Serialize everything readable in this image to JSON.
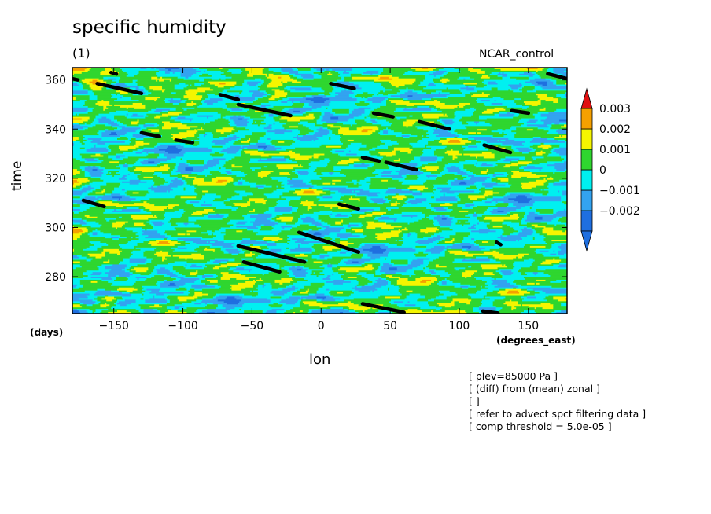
{
  "chart_data": {
    "type": "heatmap",
    "title": "specific humidity",
    "subtitle": "(1)",
    "run": "NCAR_control",
    "xlabel": "lon",
    "ylabel": "time",
    "x_unit": "(degrees_east)",
    "y_unit": "(days)",
    "xlim": [
      -180,
      178
    ],
    "ylim": [
      265,
      365
    ],
    "xticks": [
      -150,
      -100,
      -50,
      0,
      50,
      100,
      150
    ],
    "yticks": [
      280,
      300,
      320,
      340,
      360
    ],
    "colorbar": {
      "levels": [
        -0.003,
        -0.002,
        -0.001,
        0,
        0.001,
        0.002,
        0.003
      ],
      "labels": [
        "0.003",
        "0.002",
        "0.001",
        "0",
        "−0.001",
        "−0.002"
      ],
      "colors": [
        "#1f6fe0",
        "#33a3f0",
        "#00f0f0",
        "#2fd62f",
        "#f5f500",
        "#f5a000"
      ],
      "min_arrow_color": "#1f6fe0",
      "max_arrow_color": "#e01010"
    },
    "streaks": [
      {
        "lon": [
          -180,
          -176
        ],
        "time": [
          360.5,
          360
        ]
      },
      {
        "lon": [
          -152,
          -148
        ],
        "time": [
          363,
          362.4
        ]
      },
      {
        "lon": [
          -162,
          -130
        ],
        "time": [
          358.5,
          354.5
        ]
      },
      {
        "lon": [
          -73,
          -60
        ],
        "time": [
          354,
          352
        ]
      },
      {
        "lon": [
          -60,
          -22
        ],
        "time": [
          350,
          345.5
        ]
      },
      {
        "lon": [
          7,
          24
        ],
        "time": [
          358.5,
          356.5
        ]
      },
      {
        "lon": [
          38,
          52
        ],
        "time": [
          346.5,
          345
        ]
      },
      {
        "lon": [
          71,
          93
        ],
        "time": [
          343,
          340
        ]
      },
      {
        "lon": [
          138,
          150
        ],
        "time": [
          347.5,
          346.5
        ]
      },
      {
        "lon": [
          164,
          178
        ],
        "time": [
          362.5,
          360.5
        ]
      },
      {
        "lon": [
          -130,
          -117
        ],
        "time": [
          338.5,
          337
        ]
      },
      {
        "lon": [
          -105,
          -93
        ],
        "time": [
          335.5,
          334.5
        ]
      },
      {
        "lon": [
          118,
          137
        ],
        "time": [
          333.5,
          330.5
        ]
      },
      {
        "lon": [
          30,
          42
        ],
        "time": [
          328.5,
          327
        ]
      },
      {
        "lon": [
          47,
          69
        ],
        "time": [
          326.5,
          323.5
        ]
      },
      {
        "lon": [
          -172,
          -157
        ],
        "time": [
          311,
          308.5
        ]
      },
      {
        "lon": [
          13,
          27
        ],
        "time": [
          309.5,
          307.5
        ]
      },
      {
        "lon": [
          -16,
          27
        ],
        "time": [
          298,
          290
        ]
      },
      {
        "lon": [
          -60,
          -12
        ],
        "time": [
          292.5,
          286
        ]
      },
      {
        "lon": [
          -56,
          -30
        ],
        "time": [
          286,
          282
        ]
      },
      {
        "lon": [
          127,
          130
        ],
        "time": [
          294,
          293
        ]
      },
      {
        "lon": [
          30,
          60
        ],
        "time": [
          269,
          265.5
        ]
      },
      {
        "lon": [
          117,
          128
        ],
        "time": [
          266,
          265.2
        ]
      }
    ]
  },
  "notes": [
    "[ plev=85000 Pa ]",
    "[ (diff) from (mean) zonal ]",
    "[  ]",
    "[ refer to advect spct filtering data ]",
    "[ comp threshold = 5.0e-05 ]"
  ]
}
